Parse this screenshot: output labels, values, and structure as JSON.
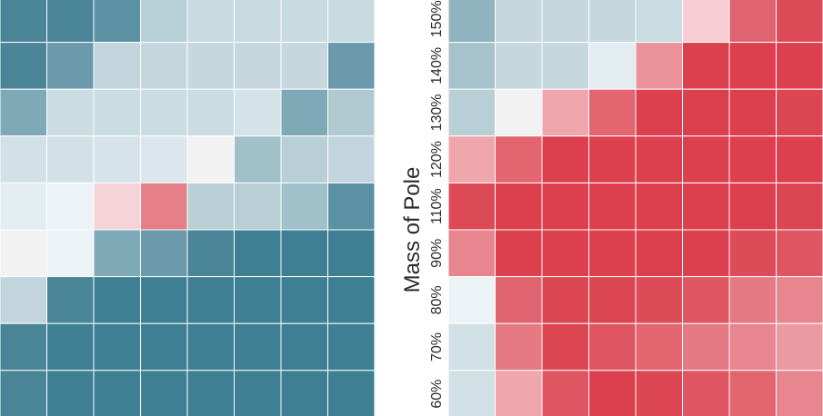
{
  "chart_data": [
    {
      "type": "heatmap",
      "rows_top_to_bottom": [
        [
          "#4a8497",
          "#4a8497",
          "#5a91a3",
          "#b7cfd6",
          "#c8dbe1",
          "#c8dbe1",
          "#c8dbe1",
          "#c8dbe1"
        ],
        [
          "#4a8497",
          "#6a9aab",
          "#c2d5dc",
          "#c6d8de",
          "#c6d8de",
          "#c6d8de",
          "#c6d8de",
          "#6a9aab"
        ],
        [
          "#7eaab8",
          "#cadde3",
          "#cadde3",
          "#cadde3",
          "#cadde3",
          "#d4e3e8",
          "#7eaab8",
          "#b0cad2"
        ],
        [
          "#d2e1e6",
          "#d2e1e6",
          "#d6e4e9",
          "#dbe7ec",
          "#f2f2f2",
          "#a0c0ca",
          "#b8cfd6",
          "#c2d5dc"
        ],
        [
          "#e2ecf1",
          "#ecf3f6",
          "#f6d3d8",
          "#e57f88",
          "#b8cfd6",
          "#b8cfd6",
          "#a0c0ca",
          "#5a91a3"
        ],
        [
          "#f2f2f2",
          "#ecf3f6",
          "#7eaab8",
          "#6a9aab",
          "#4a8497",
          "#3e7f94",
          "#3e7f94",
          "#3e7f94"
        ],
        [
          "#c2d5dc",
          "#4a8497",
          "#3e7f94",
          "#3e7f94",
          "#3e7f94",
          "#3e7f94",
          "#3e7f94",
          "#3e7f94"
        ],
        [
          "#4a8497",
          "#3e7f94",
          "#3e7f94",
          "#3e7f94",
          "#3e7f94",
          "#3e7f94",
          "#3e7f94",
          "#3e7f94"
        ],
        [
          "#4a8497",
          "#3e7f94",
          "#3e7f94",
          "#3e7f94",
          "#3e7f94",
          "#3e7f94",
          "#3e7f94",
          "#3e7f94"
        ]
      ]
    },
    {
      "type": "heatmap",
      "ylabel": "Mass of Pole",
      "y_ticks_top_to_bottom": [
        "150%",
        "140%",
        "130%",
        "120%",
        "110%",
        "90%",
        "80%",
        "70%",
        "60%"
      ],
      "rows_top_to_bottom": [
        [
          "#8fb3bf",
          "#c6d8de",
          "#c6d8de",
          "#c6d8de",
          "#cadde3",
          "#f6cdd2",
          "#e06470",
          "#dd4a58"
        ],
        [
          "#a6c3cc",
          "#c6d8de",
          "#c6d8de",
          "#e2ecf1",
          "#ea9199",
          "#dc3f4e",
          "#dc3f4e",
          "#dc3f4e"
        ],
        [
          "#b8cfd6",
          "#f2f2f2",
          "#efa6ad",
          "#e2656f",
          "#dc3f4e",
          "#dc3f4e",
          "#dc3f4e",
          "#dc4653"
        ],
        [
          "#efa6ad",
          "#e2656f",
          "#dc3f4e",
          "#dc3f4e",
          "#dc3f4e",
          "#dc3f4e",
          "#dc3f4e",
          "#dc3f4e"
        ],
        [
          "#dc4a58",
          "#dc3f4e",
          "#dc3f4e",
          "#dc3f4e",
          "#dc3f4e",
          "#dc3f4e",
          "#dc3f4e",
          "#dc4653"
        ],
        [
          "#e8868f",
          "#dc3f4e",
          "#dc3f4e",
          "#dc3f4e",
          "#dc3f4e",
          "#dc3f4e",
          "#dd4a58",
          "#df5562"
        ],
        [
          "#ecf3f6",
          "#e06470",
          "#dc4653",
          "#dc4653",
          "#dd4a58",
          "#df5562",
          "#e57a83",
          "#e8868f"
        ],
        [
          "#d0e0e5",
          "#e57a83",
          "#dc4653",
          "#df5562",
          "#e2656f",
          "#e57a83",
          "#e8868f",
          "#ec9aa1"
        ],
        [
          "#d0e0e5",
          "#efa6ad",
          "#df5562",
          "#dc3f4e",
          "#dc4653",
          "#df5562",
          "#e2656f",
          "#e8868f"
        ]
      ]
    }
  ],
  "gridline_color": "#ffffff"
}
